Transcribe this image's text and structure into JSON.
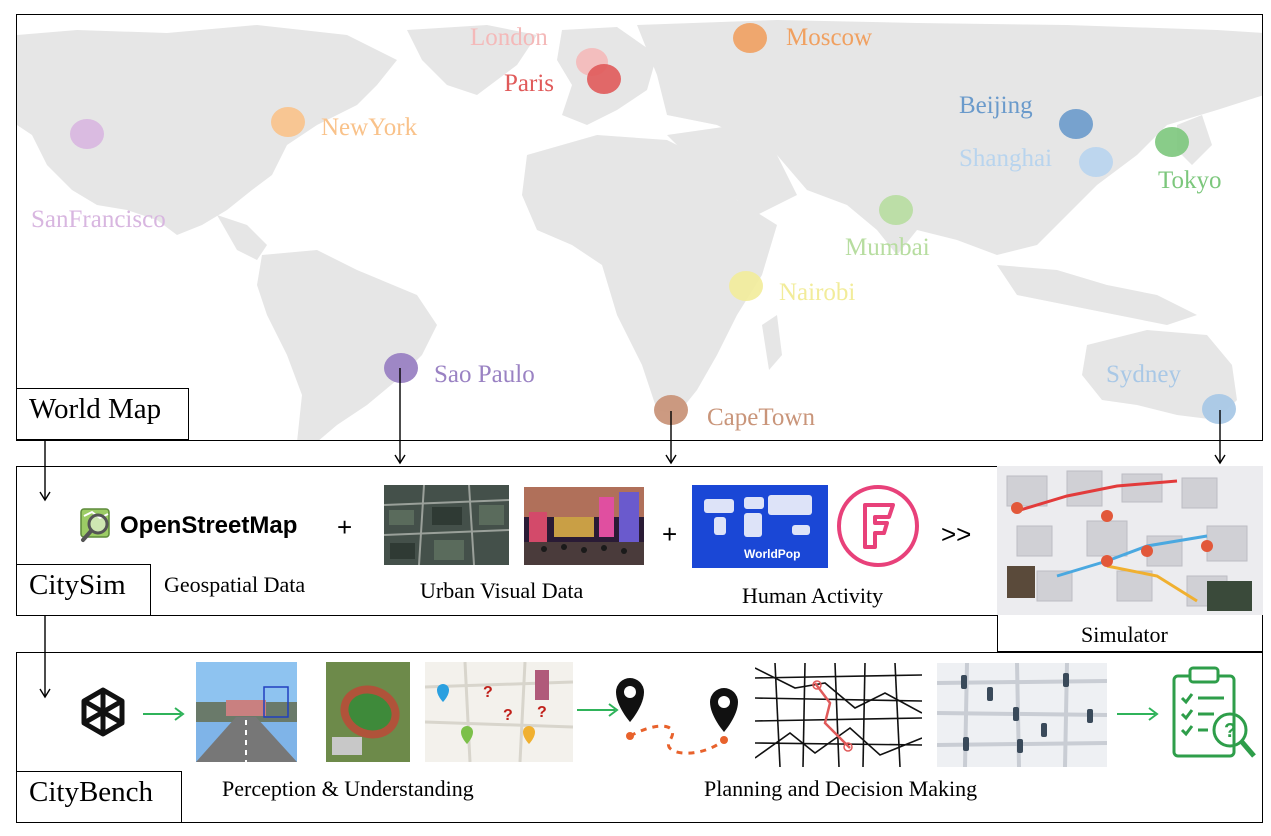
{
  "world_map": {
    "label": "World Map",
    "cities": [
      {
        "name": "London",
        "color": "#f4b9b9"
      },
      {
        "name": "Paris",
        "color": "#e05a5a"
      },
      {
        "name": "Moscow",
        "color": "#f0a060"
      },
      {
        "name": "NewYork",
        "color": "#f9c28a"
      },
      {
        "name": "SanFrancisco",
        "color": "#d8b6e0"
      },
      {
        "name": "Beijing",
        "color": "#6a9acb"
      },
      {
        "name": "Shanghai",
        "color": "#b8d4ee"
      },
      {
        "name": "Tokyo",
        "color": "#7cc77c"
      },
      {
        "name": "Mumbai",
        "color": "#b7dda0"
      },
      {
        "name": "Nairobi",
        "color": "#f2ec9a"
      },
      {
        "name": "Sao Paulo",
        "color": "#9a82c3"
      },
      {
        "name": "CapeTown",
        "color": "#c9957a"
      },
      {
        "name": "Sydney",
        "color": "#a9c8e6"
      }
    ]
  },
  "citysim": {
    "label": "CitySim",
    "osm_name": "OpenStreetMap",
    "plus": "+",
    "more": ">>",
    "geospatial_caption": "Geospatial Data",
    "urban_visual_caption": "Urban Visual Data",
    "human_activity_caption": "Human Activity",
    "worldpop_name": "WorldPop",
    "simulator_caption": "Simulator"
  },
  "citybench": {
    "label": "CityBench",
    "perception_caption": "Perception & Understanding",
    "planning_caption": "Planning and Decision Making"
  },
  "colors": {
    "land": "#e6e6e6",
    "arrow_green": "#2fb35a",
    "route_orange": "#e8622c",
    "worldpop_blue": "#1a47d6",
    "foursquare_pink": "#e8417a",
    "report_green": "#2e9e4a"
  }
}
